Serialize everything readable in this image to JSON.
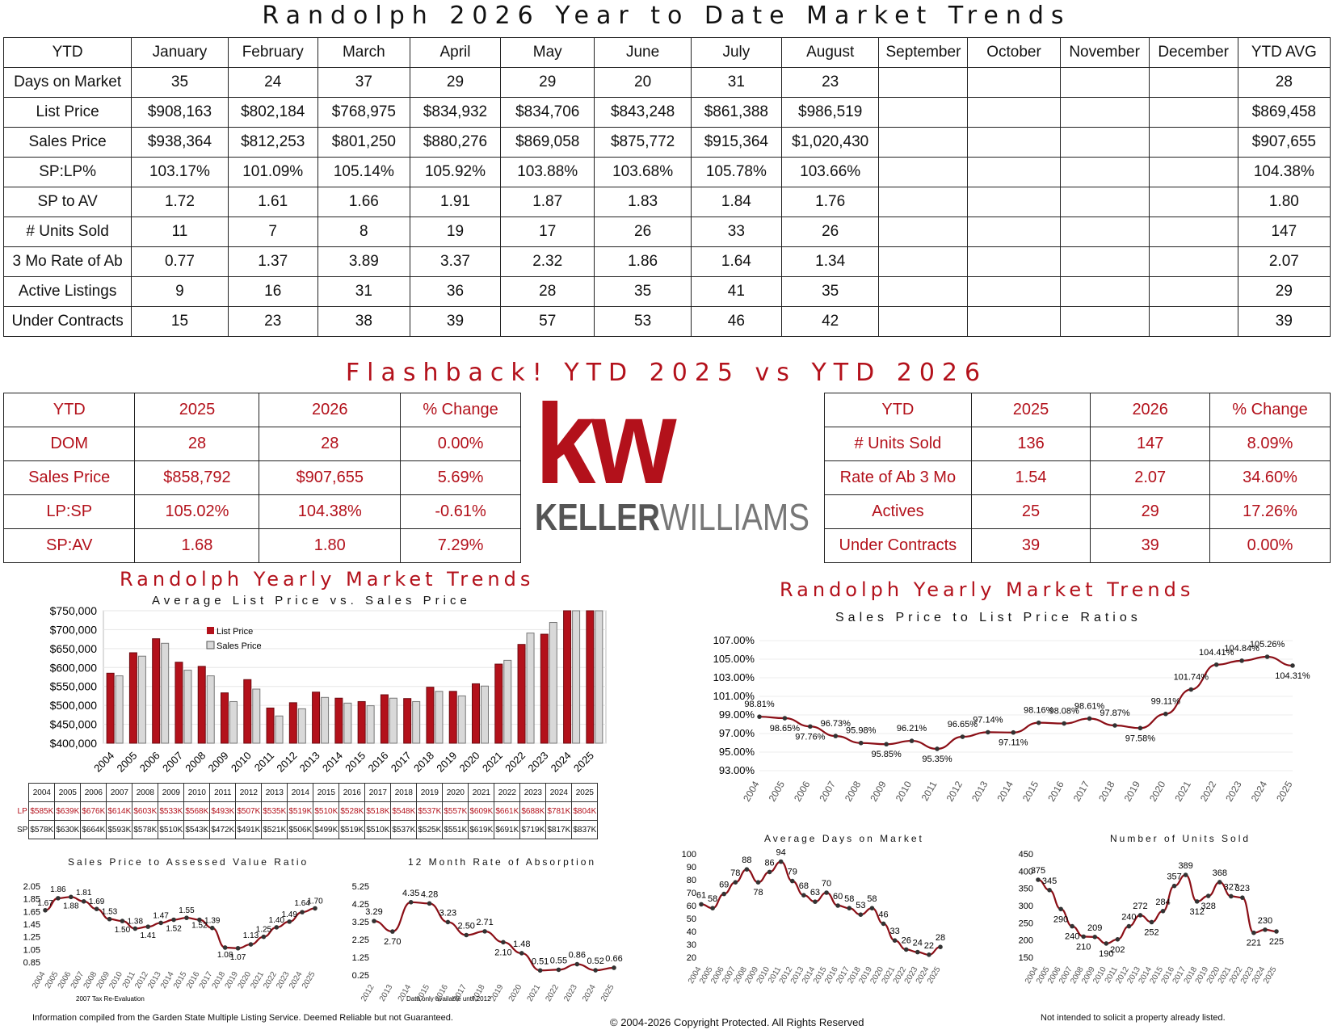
{
  "title": "Randolph 2026 Year to Date Market Trends",
  "ytd_table": {
    "headers": [
      "YTD",
      "January",
      "February",
      "March",
      "April",
      "May",
      "June",
      "July",
      "August",
      "September",
      "October",
      "November",
      "December",
      "YTD AVG"
    ],
    "rows": [
      {
        "label": "Days on Market",
        "values": [
          "35",
          "24",
          "37",
          "29",
          "29",
          "20",
          "31",
          "23",
          "",
          "",
          "",
          "",
          "28"
        ]
      },
      {
        "label": "List Price",
        "values": [
          "$908,163",
          "$802,184",
          "$768,975",
          "$834,932",
          "$834,706",
          "$843,248",
          "$861,388",
          "$986,519",
          "",
          "",
          "",
          "",
          "$869,458"
        ]
      },
      {
        "label": "Sales Price",
        "values": [
          "$938,364",
          "$812,253",
          "$801,250",
          "$880,276",
          "$869,058",
          "$875,772",
          "$915,364",
          "$1,020,430",
          "",
          "",
          "",
          "",
          "$907,655"
        ]
      },
      {
        "label": "SP:LP%",
        "values": [
          "103.17%",
          "101.09%",
          "105.14%",
          "105.92%",
          "103.88%",
          "103.68%",
          "105.78%",
          "103.66%",
          "",
          "",
          "",
          "",
          "104.38%"
        ]
      },
      {
        "label": "SP to AV",
        "values": [
          "1.72",
          "1.61",
          "1.66",
          "1.91",
          "1.87",
          "1.83",
          "1.84",
          "1.76",
          "",
          "",
          "",
          "",
          "1.80"
        ]
      },
      {
        "label": "# Units Sold",
        "values": [
          "11",
          "7",
          "8",
          "19",
          "17",
          "26",
          "33",
          "26",
          "",
          "",
          "",
          "",
          "147"
        ]
      },
      {
        "label": "3 Mo Rate of Ab",
        "values": [
          "0.77",
          "1.37",
          "3.89",
          "3.37",
          "2.32",
          "1.86",
          "1.64",
          "1.34",
          "",
          "",
          "",
          "",
          "2.07"
        ]
      },
      {
        "label": "Active Listings",
        "values": [
          "9",
          "16",
          "31",
          "36",
          "28",
          "35",
          "41",
          "35",
          "",
          "",
          "",
          "",
          "29"
        ]
      },
      {
        "label": "Under Contracts",
        "values": [
          "15",
          "23",
          "38",
          "39",
          "57",
          "53",
          "46",
          "42",
          "",
          "",
          "",
          "",
          "39"
        ]
      }
    ]
  },
  "flashback_title": "Flashback!  YTD 2025 vs YTD 2026",
  "compare_left": {
    "headers": [
      "YTD",
      "2025",
      "2026",
      "% Change"
    ],
    "rows": [
      [
        "DOM",
        "28",
        "28",
        "0.00%"
      ],
      [
        "Sales Price",
        "$858,792",
        "$907,655",
        "5.69%"
      ],
      [
        "LP:SP",
        "105.02%",
        "104.38%",
        "-0.61%"
      ],
      [
        "SP:AV",
        "1.68",
        "1.80",
        "7.29%"
      ]
    ]
  },
  "compare_right": {
    "headers": [
      "YTD",
      "2025",
      "2026",
      "% Change"
    ],
    "rows": [
      [
        "# Units Sold",
        "136",
        "147",
        "8.09%"
      ],
      [
        "Rate of Ab 3 Mo",
        "1.54",
        "2.07",
        "34.60%"
      ],
      [
        "Actives",
        "25",
        "29",
        "17.26%"
      ],
      [
        "Under Contracts",
        "39",
        "39",
        "0.00%"
      ]
    ]
  },
  "logo": {
    "mark": "kw",
    "wordmark_bold": "KELLER",
    "wordmark_light": "WILLIAMS",
    "color": "#b3111b"
  },
  "yearly_title_left": "Randolph Yearly Market Trends",
  "yearly_title_right": "Randolph Yearly Market Trends",
  "colors": {
    "accent": "#b3111b",
    "sales_bar": "#d9d9d9",
    "line": "#8b0e16"
  },
  "chart_data": [
    {
      "id": "avg-list-vs-sales",
      "type": "bar",
      "title": "Average List Price vs. Sales Price",
      "categories": [
        "2004",
        "2005",
        "2006",
        "2007",
        "2008",
        "2009",
        "2010",
        "2011",
        "2012",
        "2013",
        "2014",
        "2015",
        "2016",
        "2017",
        "2018",
        "2019",
        "2020",
        "2021",
        "2022",
        "2023",
        "2024",
        "2025"
      ],
      "series": [
        {
          "name": "List Price",
          "values": [
            585,
            639,
            676,
            614,
            603,
            533,
            568,
            493,
            507,
            535,
            519,
            510,
            528,
            518,
            548,
            537,
            557,
            609,
            661,
            688,
            781,
            804
          ]
        },
        {
          "name": "Sales Price",
          "values": [
            578,
            630,
            664,
            593,
            578,
            510,
            543,
            472,
            491,
            521,
            506,
            499,
            519,
            510,
            537,
            525,
            551,
            619,
            691,
            719,
            817,
            837
          ]
        }
      ],
      "ylim": [
        400000,
        750000
      ],
      "yticks": [
        "$400,000",
        "$450,000",
        "$500,000",
        "$550,000",
        "$600,000",
        "$650,000",
        "$700,000",
        "$750,000"
      ],
      "legend": "top-left",
      "table": {
        "row_labels": [
          "LP",
          "SP"
        ],
        "lp": [
          "$585K",
          "$639K",
          "$676K",
          "$614K",
          "$603K",
          "$533K",
          "$568K",
          "$493K",
          "$507K",
          "$535K",
          "$519K",
          "$510K",
          "$528K",
          "$518K",
          "$548K",
          "$537K",
          "$557K",
          "$609K",
          "$661K",
          "$688K",
          "$781K",
          "$804K"
        ],
        "sp": [
          "$578K",
          "$630K",
          "$664K",
          "$593K",
          "$578K",
          "$510K",
          "$543K",
          "$472K",
          "$491K",
          "$521K",
          "$506K",
          "$499K",
          "$519K",
          "$510K",
          "$537K",
          "$525K",
          "$551K",
          "$619K",
          "$691K",
          "$719K",
          "$817K",
          "$837K"
        ]
      }
    },
    {
      "id": "sp-lp-ratio",
      "type": "line",
      "title": "Sales Price to List Price Ratios",
      "x": [
        "2004",
        "2005",
        "2006",
        "2007",
        "2008",
        "2009",
        "2010",
        "2011",
        "2012",
        "2013",
        "2014",
        "2015",
        "2016",
        "2017",
        "2018",
        "2019",
        "2020",
        "2021",
        "2022",
        "2023",
        "2024",
        "2025"
      ],
      "values": [
        98.81,
        98.65,
        97.76,
        96.73,
        95.98,
        95.85,
        96.21,
        95.35,
        96.65,
        97.14,
        97.11,
        98.16,
        98.08,
        98.61,
        97.87,
        97.58,
        99.11,
        101.74,
        104.41,
        104.84,
        105.26,
        104.31
      ],
      "labels": [
        "98.81%",
        "98.65%",
        "97.76%",
        "96.73%",
        "95.98%",
        "95.85%",
        "96.21%",
        "95.35%",
        "96.65%",
        "97.14%",
        "97.11%",
        "98.16%",
        "98.08%",
        "98.61%",
        "97.87%",
        "97.58%",
        "99.11%",
        "101.74%",
        "104.41%",
        "104.84%",
        "105.26%",
        "104.31%"
      ],
      "ylim": [
        93,
        107
      ],
      "yticks": [
        "93.00%",
        "95.00%",
        "97.00%",
        "99.00%",
        "101.00%",
        "103.00%",
        "105.00%",
        "107.00%"
      ]
    },
    {
      "id": "sp-av-ratio",
      "type": "line",
      "title": "Sales Price to Assessed Value Ratio",
      "x": [
        "2004",
        "2005",
        "2006",
        "2007",
        "2008",
        "2009",
        "2010",
        "2011",
        "2012",
        "2013",
        "2014",
        "2015",
        "2016",
        "2017",
        "2018",
        "2019",
        "2020",
        "2021",
        "2022",
        "2023",
        "2024",
        "2025"
      ],
      "values": [
        1.67,
        1.86,
        1.88,
        1.81,
        1.69,
        1.53,
        1.5,
        1.38,
        1.41,
        1.47,
        1.52,
        1.55,
        1.52,
        1.39,
        1.08,
        1.07,
        1.13,
        1.25,
        1.4,
        1.49,
        1.64,
        1.7
      ],
      "labels": [
        "1.67",
        "1.86",
        "1.88",
        "1.81",
        "1.69",
        "1.53",
        "1.50",
        "1.38",
        "1.41",
        "1.47",
        "1.52",
        "1.55",
        "1.52",
        "1.39",
        "1.08",
        "1.07",
        "1.13",
        "1.25",
        "1.40",
        "1.49",
        "1.64",
        "1.70"
      ],
      "ylim": [
        0.85,
        2.05
      ],
      "yticks": [
        "0.85",
        "1.05",
        "1.25",
        "1.45",
        "1.65",
        "1.85",
        "2.05"
      ],
      "note": "2007 Tax Re-Evaluation"
    },
    {
      "id": "rate-absorption",
      "type": "line",
      "title": "12 Month Rate of Absorption",
      "x": [
        "2012",
        "2013",
        "2014",
        "2015",
        "2016",
        "2017",
        "2018",
        "2019",
        "2020",
        "2021",
        "2022",
        "2023",
        "2024",
        "2025"
      ],
      "values": [
        3.29,
        2.7,
        4.35,
        4.28,
        3.23,
        2.5,
        2.71,
        2.1,
        1.48,
        0.51,
        0.55,
        0.86,
        0.52,
        0.66
      ],
      "labels": [
        "3.29",
        "2.70",
        "4.35",
        "4.28",
        "3.23",
        "2.50",
        "2.71",
        "2.10",
        "1.48",
        "0.51",
        "0.55",
        "0.86",
        "0.52",
        "0.66"
      ],
      "ylim": [
        0.25,
        5.25
      ],
      "yticks": [
        "0.25",
        "1.25",
        "2.25",
        "3.25",
        "4.25",
        "5.25"
      ],
      "note": "Data only available until 2012"
    },
    {
      "id": "avg-dom",
      "type": "line",
      "title": "Average Days on Market",
      "x": [
        "2004",
        "2005",
        "2006",
        "2007",
        "2008",
        "2009",
        "2010",
        "2011",
        "2012",
        "2013",
        "2014",
        "2015",
        "2016",
        "2017",
        "2018",
        "2019",
        "2020",
        "2021",
        "2022",
        "2023",
        "2024",
        "2025"
      ],
      "values": [
        61,
        58,
        69,
        78,
        88,
        78,
        86,
        94,
        79,
        68,
        63,
        70,
        60,
        58,
        53,
        58,
        46,
        33,
        26,
        24,
        22,
        28
      ],
      "labels": [
        "61",
        "58",
        "69",
        "78",
        "88",
        "78",
        "86",
        "94",
        "79",
        "68",
        "63",
        "70",
        "60",
        "58",
        "53",
        "58",
        "46",
        "33",
        "26",
        "24",
        "22",
        "28"
      ],
      "ylim": [
        20,
        100
      ],
      "yticks": [
        "20",
        "30",
        "40",
        "50",
        "60",
        "70",
        "80",
        "90",
        "100"
      ]
    },
    {
      "id": "units-sold",
      "type": "line",
      "title": "Number of Units Sold",
      "x": [
        "2004",
        "2005",
        "2006",
        "2007",
        "2008",
        "2009",
        "2010",
        "2011",
        "2012",
        "2013",
        "2014",
        "2015",
        "2016",
        "2017",
        "2018",
        "2019",
        "2020",
        "2021",
        "2022",
        "2023",
        "2024",
        "2025"
      ],
      "values": [
        375,
        345,
        290,
        240,
        210,
        209,
        190,
        202,
        240,
        272,
        252,
        284,
        357,
        389,
        312,
        328,
        368,
        327,
        323,
        221,
        230,
        225
      ],
      "labels": [
        "375",
        "345",
        "290",
        "240",
        "210",
        "209",
        "190",
        "202",
        "240",
        "272",
        "252",
        "284",
        "357",
        "389",
        "312",
        "328",
        "368",
        "327",
        "323",
        "221",
        "230",
        "225"
      ],
      "ylim": [
        150,
        450
      ],
      "yticks": [
        "150",
        "200",
        "250",
        "300",
        "350",
        "400",
        "450"
      ]
    }
  ],
  "footer": {
    "left": "Information compiled from the Garden State Multiple Listing Service.  Deemed Reliable but not Guaranteed.",
    "center": "© 2004-2026 Copyright Protected.  All Rights Reserved",
    "right": "Not intended to solicit a property already listed."
  }
}
